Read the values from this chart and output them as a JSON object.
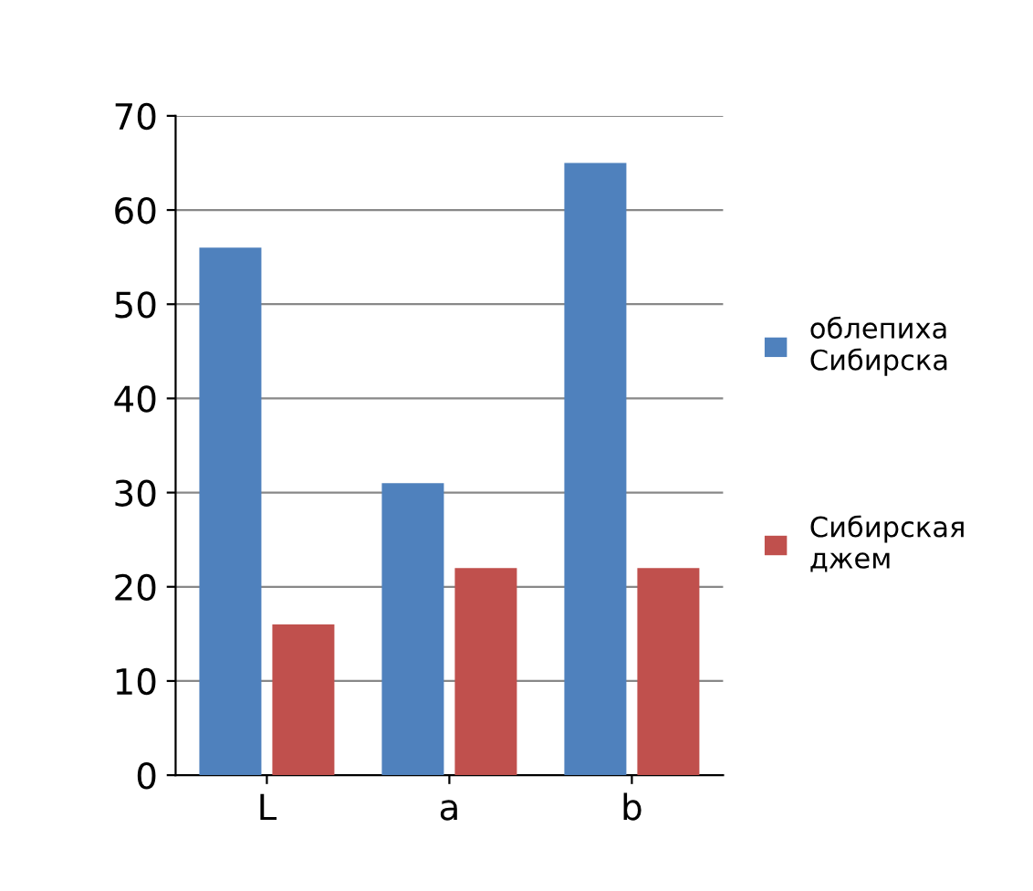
{
  "chart_data": {
    "type": "bar",
    "categories": [
      "L",
      "a",
      "b"
    ],
    "series": [
      {
        "name": "облепиха\nСибирска",
        "color": "#4f81bd",
        "values": [
          56,
          31,
          65
        ]
      },
      {
        "name": "Сибирская\nджем",
        "color": "#c0504d",
        "values": [
          16,
          22,
          22
        ]
      }
    ],
    "ylim": [
      0,
      70
    ],
    "yticks": [
      0,
      10,
      20,
      30,
      40,
      50,
      60,
      70
    ],
    "grid": "y",
    "legend": "right"
  }
}
